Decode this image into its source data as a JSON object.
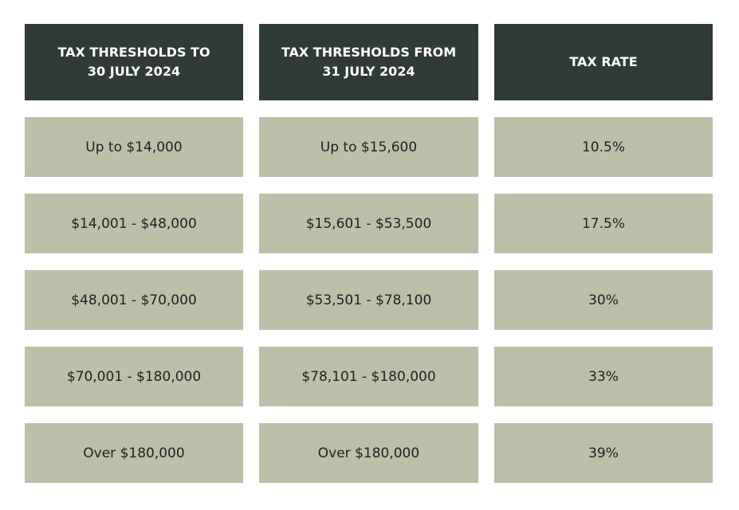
{
  "table": {
    "headers": [
      "TAX THRESHOLDS TO\n30 JULY 2024",
      "TAX THRESHOLDS FROM\n31 JULY 2024",
      "TAX RATE"
    ],
    "rows": [
      [
        "Up to $14,000",
        "Up to $15,600",
        "10.5%"
      ],
      [
        "$14,001 - $48,000",
        "$15,601 - $53,500",
        "17.5%"
      ],
      [
        "$48,001 - $70,000",
        "$53,501 - $78,100",
        "30%"
      ],
      [
        "$70,001 - $180,000",
        "$78,101 - $180,000",
        "33%"
      ],
      [
        "Over $180,000",
        "Over $180,000",
        "39%"
      ]
    ]
  }
}
